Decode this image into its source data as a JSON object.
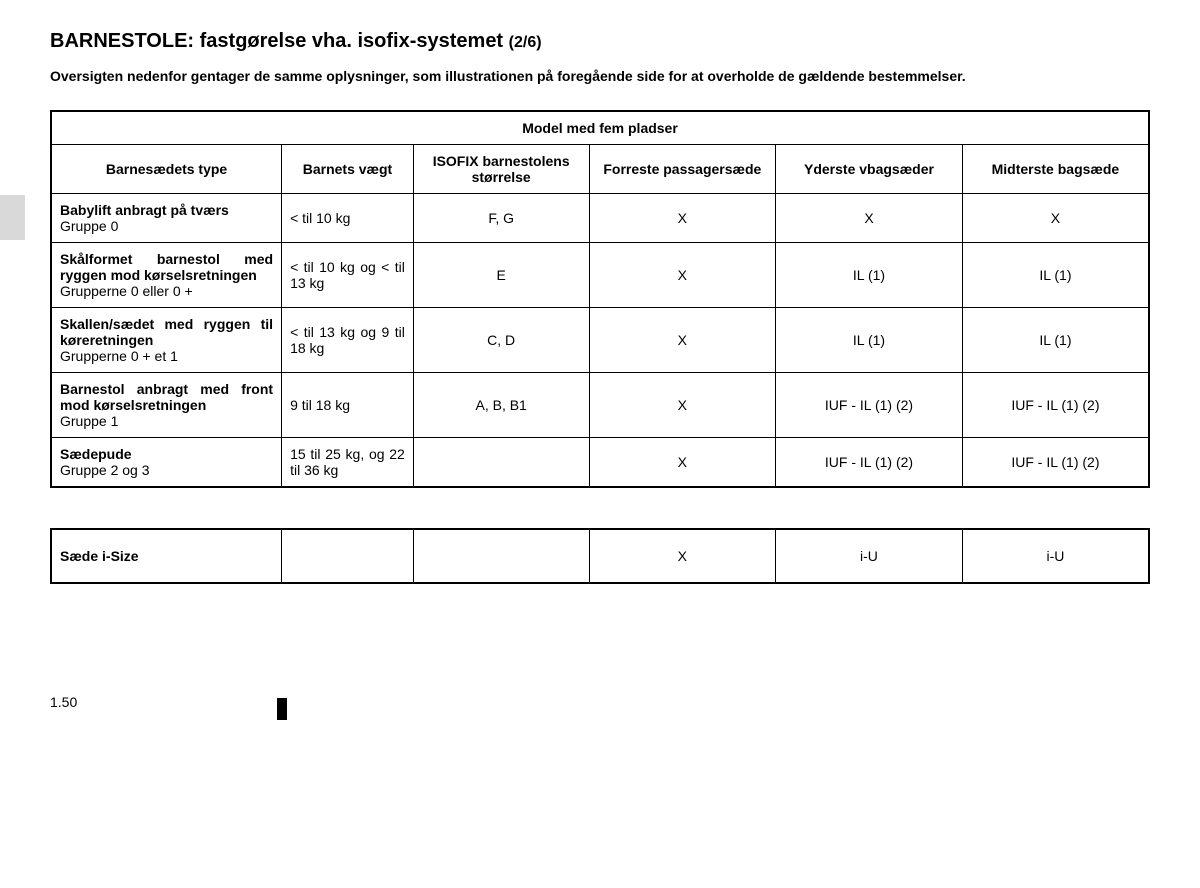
{
  "title_main": "BARNESTOLE: fastgørelse vha. isofix-systemet ",
  "title_suffix": "(2/6)",
  "intro": "Oversigten nedenfor gentager de samme oplysninger, som illustrationen på foregående side for at overholde de gældende bestemmelser.",
  "table": {
    "caption": "Model med fem pladser",
    "headers": {
      "type": "Barnesædets type",
      "weight": "Barnets vægt",
      "size": "ISOFIX barnestolens størrelse",
      "front": "Forreste passagersæde",
      "outer": "Yderste vbagsæder",
      "middle": "Midterste bagsæde"
    },
    "rows": [
      {
        "type_bold": "Babylift anbragt på tværs",
        "type_group": "Gruppe 0",
        "weight": "< til 10 kg",
        "size": "F, G",
        "front": "X",
        "outer": "X",
        "middle": "X"
      },
      {
        "type_bold": "Skålformet barnestol med ryggen mod kørselsretningen",
        "type_group": "Grupperne 0 eller 0 +",
        "weight": "< til 10 kg og < til 13 kg",
        "size": "E",
        "front": "X",
        "outer": "IL (1)",
        "middle": "IL (1)"
      },
      {
        "type_bold": "Skallen/sædet med ryggen til køreretningen",
        "type_group": "Grupperne 0 + et 1",
        "weight": "< til 13 kg og 9 til 18 kg",
        "size": "C, D",
        "front": "X",
        "outer": "IL (1)",
        "middle": "IL (1)"
      },
      {
        "type_bold": "Barnestol anbragt med front mod kørselsretningen",
        "type_group": "Gruppe 1",
        "weight": "9 til 18 kg",
        "size": "A, B, B1",
        "front": "X",
        "outer": "IUF - IL (1) (2)",
        "middle": "IUF - IL (1) (2)"
      },
      {
        "type_bold": "Sædepude",
        "type_group": "Gruppe 2 og 3",
        "weight": "15 til 25 kg, og 22 til 36 kg",
        "size": "",
        "front": "X",
        "outer": "IUF - IL (1) (2)",
        "middle": "IUF - IL (1) (2)"
      }
    ]
  },
  "isize": {
    "label": "Sæde i-Size",
    "front": "X",
    "outer": "i-U",
    "middle": "i-U"
  },
  "page_number": "1.50",
  "colors": {
    "text": "#000000",
    "background": "#ffffff",
    "side_tab": "#d9d9d9",
    "border": "#000000"
  },
  "typography": {
    "title_fontsize": 20,
    "body_fontsize": 14,
    "font_family": "Arial"
  },
  "column_widths_pct": {
    "type": 21,
    "weight": 12,
    "size": 16,
    "front": 17,
    "outer": 17,
    "middle": 17
  }
}
